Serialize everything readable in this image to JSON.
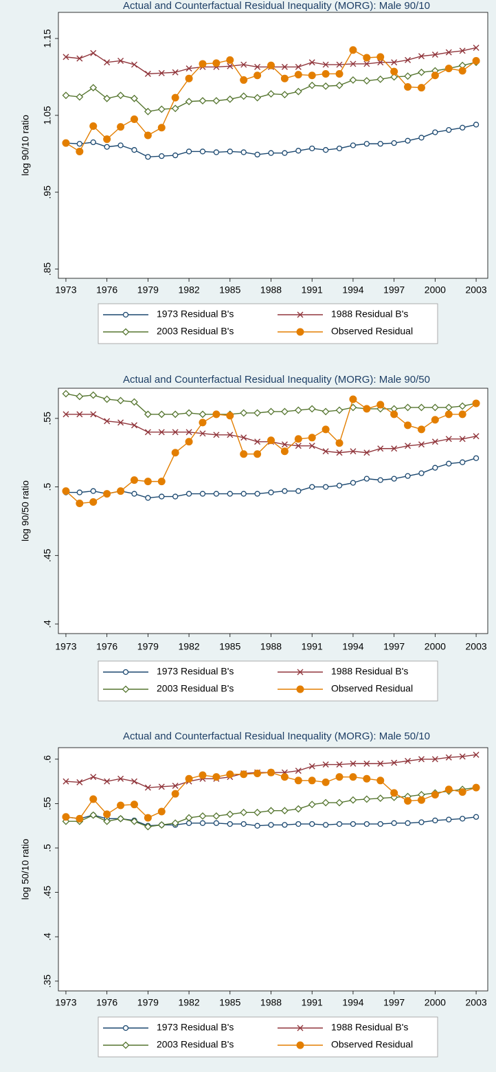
{
  "chart_data": [
    {
      "type": "line",
      "title": "Actual and Counterfactual Residual Inequality (MORG): Male 90/10",
      "y_label": "log 90/10 ratio",
      "x": [
        1973,
        1974,
        1975,
        1976,
        1977,
        1978,
        1979,
        1980,
        1981,
        1982,
        1983,
        1984,
        1985,
        1986,
        1987,
        1988,
        1989,
        1990,
        1991,
        1992,
        1993,
        1994,
        1995,
        1996,
        1997,
        1998,
        1999,
        2000,
        2001,
        2002,
        2003
      ],
      "xlim": [
        1972.45,
        2003.85
      ],
      "xticks": [
        1973,
        1976,
        1979,
        1982,
        1985,
        1988,
        1991,
        1994,
        1997,
        2000,
        2003
      ],
      "ylim": [
        0.838,
        1.184
      ],
      "yticks": [
        1.15,
        1.05,
        {
          "value": 0.95,
          "label": ".95"
        },
        {
          "value": 0.85,
          "label": ".85"
        }
      ],
      "series": [
        {
          "name": "1973 Residual B's",
          "color": "#1a476f",
          "marker": "circle-open",
          "values": [
            1.014,
            1.013,
            1.015,
            1.009,
            1.011,
            1.005,
            0.996,
            0.997,
            0.998,
            1.003,
            1.003,
            1.002,
            1.003,
            1.002,
            0.999,
            1.001,
            1.001,
            1.004,
            1.007,
            1.005,
            1.007,
            1.011,
            1.013,
            1.013,
            1.014,
            1.017,
            1.021,
            1.028,
            1.031,
            1.034,
            1.038
          ]
        },
        {
          "name": "1988 Residual B's",
          "color": "#90353b",
          "marker": "x",
          "values": [
            1.126,
            1.124,
            1.131,
            1.119,
            1.121,
            1.116,
            1.104,
            1.105,
            1.106,
            1.111,
            1.113,
            1.113,
            1.114,
            1.116,
            1.113,
            1.113,
            1.113,
            1.113,
            1.119,
            1.116,
            1.116,
            1.117,
            1.117,
            1.119,
            1.119,
            1.122,
            1.127,
            1.129,
            1.132,
            1.134,
            1.138
          ]
        },
        {
          "name": "2003 Residual B's",
          "color": "#55752f",
          "marker": "diamond-open",
          "values": [
            1.076,
            1.074,
            1.086,
            1.072,
            1.076,
            1.072,
            1.055,
            1.058,
            1.059,
            1.068,
            1.069,
            1.069,
            1.071,
            1.075,
            1.073,
            1.078,
            1.077,
            1.081,
            1.089,
            1.088,
            1.089,
            1.096,
            1.095,
            1.097,
            1.1,
            1.101,
            1.106,
            1.108,
            1.111,
            1.115,
            1.119
          ]
        },
        {
          "name": "Observed Residual",
          "color": "#e37e00",
          "marker": "circle",
          "values": [
            1.014,
            1.003,
            1.036,
            1.019,
            1.035,
            1.045,
            1.024,
            1.034,
            1.073,
            1.098,
            1.117,
            1.118,
            1.122,
            1.096,
            1.102,
            1.115,
            1.098,
            1.103,
            1.102,
            1.104,
            1.104,
            1.135,
            1.125,
            1.126,
            1.107,
            1.087,
            1.086,
            1.102,
            1.111,
            1.108,
            1.121
          ]
        }
      ]
    },
    {
      "type": "line",
      "title": "Actual and Counterfactual Residual Inequality (MORG): Male 90/50",
      "y_label": "log 90/50 ratio",
      "x": [
        1973,
        1974,
        1975,
        1976,
        1977,
        1978,
        1979,
        1980,
        1981,
        1982,
        1983,
        1984,
        1985,
        1986,
        1987,
        1988,
        1989,
        1990,
        1991,
        1992,
        1993,
        1994,
        1995,
        1996,
        1997,
        1998,
        1999,
        2000,
        2001,
        2002,
        2003
      ],
      "xlim": [
        1972.45,
        2003.85
      ],
      "xticks": [
        1973,
        1976,
        1979,
        1982,
        1985,
        1988,
        1991,
        1994,
        1997,
        2000,
        2003
      ],
      "ylim": [
        0.393,
        0.572
      ],
      "yticks": [
        {
          "value": 0.55,
          "label": ".55"
        },
        {
          "value": 0.5,
          "label": ".5"
        },
        {
          "value": 0.45,
          "label": ".45"
        },
        {
          "value": 0.4,
          "label": ".4"
        }
      ],
      "series": [
        {
          "name": "1973 Residual B's",
          "color": "#1a476f",
          "marker": "circle-open",
          "values": [
            0.496,
            0.496,
            0.497,
            0.495,
            0.497,
            0.495,
            0.492,
            0.493,
            0.493,
            0.495,
            0.495,
            0.495,
            0.495,
            0.495,
            0.495,
            0.496,
            0.497,
            0.497,
            0.5,
            0.5,
            0.501,
            0.503,
            0.506,
            0.505,
            0.506,
            0.508,
            0.51,
            0.514,
            0.517,
            0.518,
            0.521
          ]
        },
        {
          "name": "1988 Residual B's",
          "color": "#90353b",
          "marker": "x",
          "values": [
            0.553,
            0.553,
            0.553,
            0.548,
            0.547,
            0.545,
            0.54,
            0.54,
            0.54,
            0.54,
            0.539,
            0.538,
            0.538,
            0.536,
            0.533,
            0.533,
            0.531,
            0.53,
            0.53,
            0.526,
            0.525,
            0.526,
            0.525,
            0.528,
            0.528,
            0.53,
            0.531,
            0.533,
            0.535,
            0.535,
            0.537
          ]
        },
        {
          "name": "2003 Residual B's",
          "color": "#55752f",
          "marker": "diamond-open",
          "values": [
            0.568,
            0.566,
            0.567,
            0.564,
            0.563,
            0.562,
            0.553,
            0.553,
            0.553,
            0.554,
            0.553,
            0.553,
            0.553,
            0.554,
            0.554,
            0.555,
            0.555,
            0.556,
            0.557,
            0.555,
            0.556,
            0.558,
            0.557,
            0.557,
            0.557,
            0.558,
            0.558,
            0.558,
            0.558,
            0.559,
            0.561
          ]
        },
        {
          "name": "Observed Residual",
          "color": "#e37e00",
          "marker": "circle",
          "values": [
            0.497,
            0.488,
            0.489,
            0.495,
            0.497,
            0.505,
            0.504,
            0.504,
            0.525,
            0.533,
            0.547,
            0.553,
            0.552,
            0.524,
            0.524,
            0.534,
            0.526,
            0.535,
            0.536,
            0.542,
            0.532,
            0.564,
            0.557,
            0.56,
            0.553,
            0.545,
            0.542,
            0.549,
            0.553,
            0.553,
            0.561
          ]
        }
      ]
    },
    {
      "type": "line",
      "title": "Actual and Counterfactual Residual Inequality (MORG): Male 50/10",
      "y_label": "log 50/10 ratio",
      "x": [
        1973,
        1974,
        1975,
        1976,
        1977,
        1978,
        1979,
        1980,
        1981,
        1982,
        1983,
        1984,
        1985,
        1986,
        1987,
        1988,
        1989,
        1990,
        1991,
        1992,
        1993,
        1994,
        1995,
        1996,
        1997,
        1998,
        1999,
        2000,
        2001,
        2002,
        2003
      ],
      "xlim": [
        1972.45,
        2003.85
      ],
      "xticks": [
        1973,
        1976,
        1979,
        1982,
        1985,
        1988,
        1991,
        1994,
        1997,
        2000,
        2003
      ],
      "ylim": [
        0.339,
        0.613
      ],
      "yticks": [
        {
          "value": 0.6,
          "label": ".6"
        },
        {
          "value": 0.55,
          "label": ".55"
        },
        {
          "value": 0.5,
          "label": ".5"
        },
        {
          "value": 0.45,
          "label": ".45"
        },
        {
          "value": 0.4,
          "label": ".4"
        },
        {
          "value": 0.35,
          "label": ".35"
        }
      ],
      "series": [
        {
          "name": "1973 Residual B's",
          "color": "#1a476f",
          "marker": "circle-open",
          "values": [
            0.535,
            0.533,
            0.537,
            0.533,
            0.533,
            0.531,
            0.525,
            0.526,
            0.526,
            0.528,
            0.528,
            0.528,
            0.527,
            0.527,
            0.525,
            0.526,
            0.526,
            0.527,
            0.527,
            0.526,
            0.527,
            0.527,
            0.527,
            0.527,
            0.528,
            0.528,
            0.529,
            0.531,
            0.532,
            0.533,
            0.535
          ]
        },
        {
          "name": "1988 Residual B's",
          "color": "#90353b",
          "marker": "x",
          "values": [
            0.575,
            0.574,
            0.58,
            0.575,
            0.578,
            0.575,
            0.568,
            0.569,
            0.57,
            0.575,
            0.578,
            0.578,
            0.58,
            0.584,
            0.585,
            0.585,
            0.585,
            0.587,
            0.592,
            0.594,
            0.594,
            0.595,
            0.595,
            0.595,
            0.596,
            0.598,
            0.6,
            0.6,
            0.602,
            0.603,
            0.605
          ]
        },
        {
          "name": "2003 Residual B's",
          "color": "#55752f",
          "marker": "diamond-open",
          "values": [
            0.53,
            0.53,
            0.537,
            0.53,
            0.533,
            0.53,
            0.524,
            0.526,
            0.528,
            0.534,
            0.536,
            0.536,
            0.538,
            0.54,
            0.54,
            0.542,
            0.542,
            0.544,
            0.549,
            0.551,
            0.551,
            0.554,
            0.555,
            0.556,
            0.557,
            0.558,
            0.56,
            0.562,
            0.564,
            0.566,
            0.568
          ]
        },
        {
          "name": "Observed Residual",
          "color": "#e37e00",
          "marker": "circle",
          "values": [
            0.535,
            0.533,
            0.555,
            0.538,
            0.548,
            0.549,
            0.534,
            0.541,
            0.561,
            0.578,
            0.582,
            0.58,
            0.583,
            0.583,
            0.584,
            0.585,
            0.58,
            0.576,
            0.576,
            0.574,
            0.58,
            0.58,
            0.578,
            0.576,
            0.562,
            0.553,
            0.554,
            0.56,
            0.566,
            0.563,
            0.568
          ]
        }
      ]
    }
  ]
}
